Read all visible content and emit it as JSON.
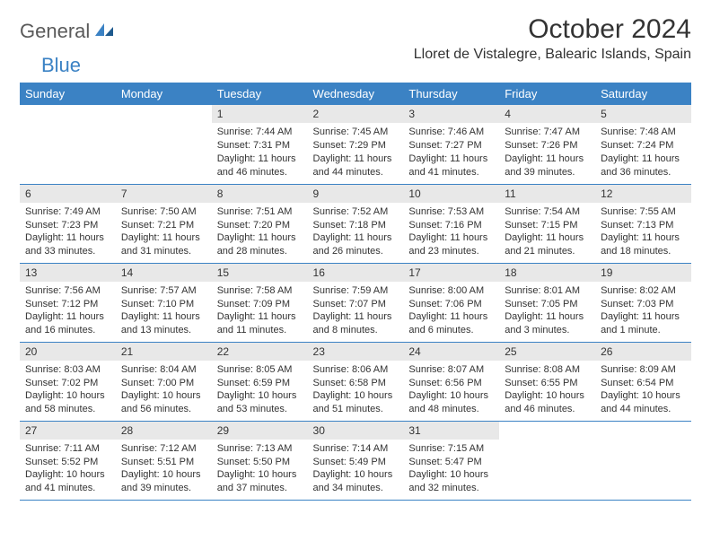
{
  "logo": {
    "part1": "General",
    "part2": "Blue"
  },
  "title": "October 2024",
  "location": "Lloret de Vistalegre, Balearic Islands, Spain",
  "colors": {
    "header_bg": "#3b82c4",
    "header_text": "#ffffff",
    "daynum_bg": "#e8e8e8",
    "border": "#3b82c4",
    "logo_gray": "#5a5a5a",
    "logo_blue": "#3b82c4"
  },
  "weekdays": [
    "Sunday",
    "Monday",
    "Tuesday",
    "Wednesday",
    "Thursday",
    "Friday",
    "Saturday"
  ],
  "weeks": [
    [
      {
        "empty": true
      },
      {
        "empty": true
      },
      {
        "num": "1",
        "sunrise": "Sunrise: 7:44 AM",
        "sunset": "Sunset: 7:31 PM",
        "daylight": "Daylight: 11 hours and 46 minutes."
      },
      {
        "num": "2",
        "sunrise": "Sunrise: 7:45 AM",
        "sunset": "Sunset: 7:29 PM",
        "daylight": "Daylight: 11 hours and 44 minutes."
      },
      {
        "num": "3",
        "sunrise": "Sunrise: 7:46 AM",
        "sunset": "Sunset: 7:27 PM",
        "daylight": "Daylight: 11 hours and 41 minutes."
      },
      {
        "num": "4",
        "sunrise": "Sunrise: 7:47 AM",
        "sunset": "Sunset: 7:26 PM",
        "daylight": "Daylight: 11 hours and 39 minutes."
      },
      {
        "num": "5",
        "sunrise": "Sunrise: 7:48 AM",
        "sunset": "Sunset: 7:24 PM",
        "daylight": "Daylight: 11 hours and 36 minutes."
      }
    ],
    [
      {
        "num": "6",
        "sunrise": "Sunrise: 7:49 AM",
        "sunset": "Sunset: 7:23 PM",
        "daylight": "Daylight: 11 hours and 33 minutes."
      },
      {
        "num": "7",
        "sunrise": "Sunrise: 7:50 AM",
        "sunset": "Sunset: 7:21 PM",
        "daylight": "Daylight: 11 hours and 31 minutes."
      },
      {
        "num": "8",
        "sunrise": "Sunrise: 7:51 AM",
        "sunset": "Sunset: 7:20 PM",
        "daylight": "Daylight: 11 hours and 28 minutes."
      },
      {
        "num": "9",
        "sunrise": "Sunrise: 7:52 AM",
        "sunset": "Sunset: 7:18 PM",
        "daylight": "Daylight: 11 hours and 26 minutes."
      },
      {
        "num": "10",
        "sunrise": "Sunrise: 7:53 AM",
        "sunset": "Sunset: 7:16 PM",
        "daylight": "Daylight: 11 hours and 23 minutes."
      },
      {
        "num": "11",
        "sunrise": "Sunrise: 7:54 AM",
        "sunset": "Sunset: 7:15 PM",
        "daylight": "Daylight: 11 hours and 21 minutes."
      },
      {
        "num": "12",
        "sunrise": "Sunrise: 7:55 AM",
        "sunset": "Sunset: 7:13 PM",
        "daylight": "Daylight: 11 hours and 18 minutes."
      }
    ],
    [
      {
        "num": "13",
        "sunrise": "Sunrise: 7:56 AM",
        "sunset": "Sunset: 7:12 PM",
        "daylight": "Daylight: 11 hours and 16 minutes."
      },
      {
        "num": "14",
        "sunrise": "Sunrise: 7:57 AM",
        "sunset": "Sunset: 7:10 PM",
        "daylight": "Daylight: 11 hours and 13 minutes."
      },
      {
        "num": "15",
        "sunrise": "Sunrise: 7:58 AM",
        "sunset": "Sunset: 7:09 PM",
        "daylight": "Daylight: 11 hours and 11 minutes."
      },
      {
        "num": "16",
        "sunrise": "Sunrise: 7:59 AM",
        "sunset": "Sunset: 7:07 PM",
        "daylight": "Daylight: 11 hours and 8 minutes."
      },
      {
        "num": "17",
        "sunrise": "Sunrise: 8:00 AM",
        "sunset": "Sunset: 7:06 PM",
        "daylight": "Daylight: 11 hours and 6 minutes."
      },
      {
        "num": "18",
        "sunrise": "Sunrise: 8:01 AM",
        "sunset": "Sunset: 7:05 PM",
        "daylight": "Daylight: 11 hours and 3 minutes."
      },
      {
        "num": "19",
        "sunrise": "Sunrise: 8:02 AM",
        "sunset": "Sunset: 7:03 PM",
        "daylight": "Daylight: 11 hours and 1 minute."
      }
    ],
    [
      {
        "num": "20",
        "sunrise": "Sunrise: 8:03 AM",
        "sunset": "Sunset: 7:02 PM",
        "daylight": "Daylight: 10 hours and 58 minutes."
      },
      {
        "num": "21",
        "sunrise": "Sunrise: 8:04 AM",
        "sunset": "Sunset: 7:00 PM",
        "daylight": "Daylight: 10 hours and 56 minutes."
      },
      {
        "num": "22",
        "sunrise": "Sunrise: 8:05 AM",
        "sunset": "Sunset: 6:59 PM",
        "daylight": "Daylight: 10 hours and 53 minutes."
      },
      {
        "num": "23",
        "sunrise": "Sunrise: 8:06 AM",
        "sunset": "Sunset: 6:58 PM",
        "daylight": "Daylight: 10 hours and 51 minutes."
      },
      {
        "num": "24",
        "sunrise": "Sunrise: 8:07 AM",
        "sunset": "Sunset: 6:56 PM",
        "daylight": "Daylight: 10 hours and 48 minutes."
      },
      {
        "num": "25",
        "sunrise": "Sunrise: 8:08 AM",
        "sunset": "Sunset: 6:55 PM",
        "daylight": "Daylight: 10 hours and 46 minutes."
      },
      {
        "num": "26",
        "sunrise": "Sunrise: 8:09 AM",
        "sunset": "Sunset: 6:54 PM",
        "daylight": "Daylight: 10 hours and 44 minutes."
      }
    ],
    [
      {
        "num": "27",
        "sunrise": "Sunrise: 7:11 AM",
        "sunset": "Sunset: 5:52 PM",
        "daylight": "Daylight: 10 hours and 41 minutes."
      },
      {
        "num": "28",
        "sunrise": "Sunrise: 7:12 AM",
        "sunset": "Sunset: 5:51 PM",
        "daylight": "Daylight: 10 hours and 39 minutes."
      },
      {
        "num": "29",
        "sunrise": "Sunrise: 7:13 AM",
        "sunset": "Sunset: 5:50 PM",
        "daylight": "Daylight: 10 hours and 37 minutes."
      },
      {
        "num": "30",
        "sunrise": "Sunrise: 7:14 AM",
        "sunset": "Sunset: 5:49 PM",
        "daylight": "Daylight: 10 hours and 34 minutes."
      },
      {
        "num": "31",
        "sunrise": "Sunrise: 7:15 AM",
        "sunset": "Sunset: 5:47 PM",
        "daylight": "Daylight: 10 hours and 32 minutes."
      },
      {
        "empty": true
      },
      {
        "empty": true
      }
    ]
  ]
}
